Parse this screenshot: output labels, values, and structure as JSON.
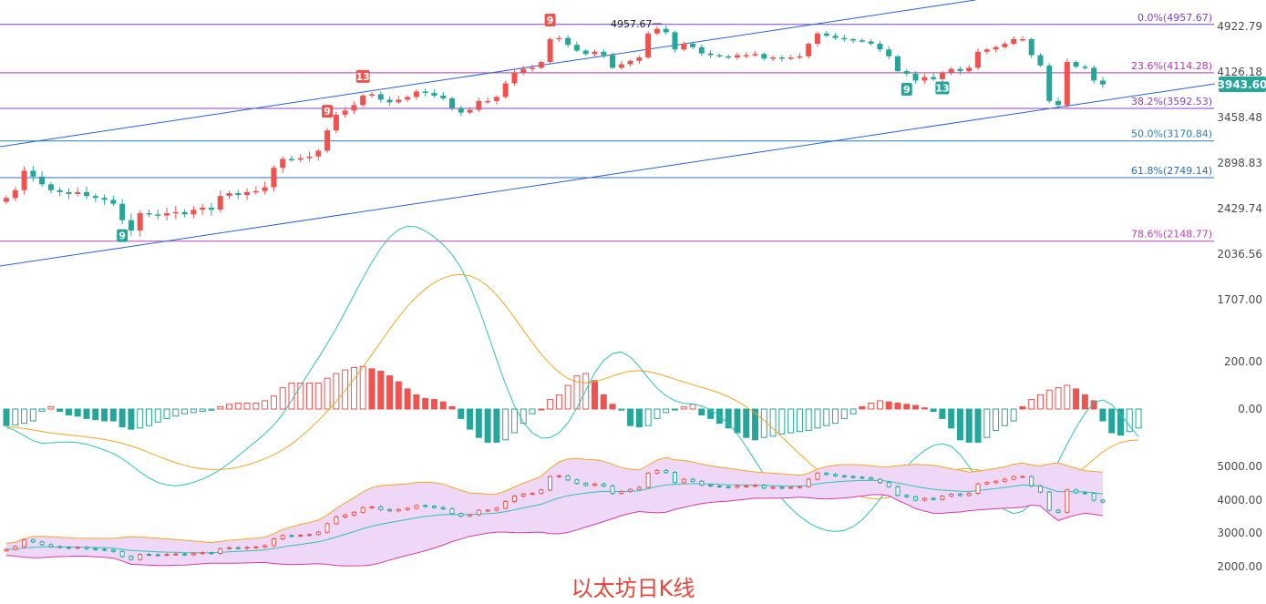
{
  "chart_data": [
    {
      "type": "candlestick",
      "name": "price",
      "y_axis_ticks": [
        "4922.79",
        "4126.18",
        "3458.48",
        "2898.83",
        "2429.74",
        "2036.56",
        "1707.00"
      ],
      "y_axis_values": [
        4922.79,
        4126.18,
        3458.48,
        2898.83,
        2429.74,
        2036.56,
        1707.0
      ],
      "current_price": "3943.60",
      "current_price_value": 3943.6,
      "high_annotation": "4957.67",
      "high_value": 4957.67,
      "fibonacci": [
        {
          "label": "0.0%(4957.67)",
          "value": 4957.67,
          "color": "#7b3fe4"
        },
        {
          "label": "23.6%(4114.28)",
          "value": 4114.28,
          "color": "#b03aa8"
        },
        {
          "label": "38.2%(3592.53)",
          "value": 3592.53,
          "color": "#8e3fc8"
        },
        {
          "label": "50.0%(3170.84)",
          "value": 3170.84,
          "color": "#2a7db0"
        },
        {
          "label": "61.8%(2749.14)",
          "value": 2749.14,
          "color": "#2b6fc0"
        },
        {
          "label": "78.6%(2148.77)",
          "value": 2148.77,
          "color": "#c040b0"
        }
      ],
      "markers": [
        {
          "text": "9",
          "bar": 13,
          "position": "below",
          "color": "#26a69a"
        },
        {
          "text": "9",
          "bar": 36,
          "position": "above",
          "color": "#ef5350"
        },
        {
          "text": "13",
          "bar": 40,
          "position": "above",
          "color": "#ef5350"
        },
        {
          "text": "9",
          "bar": 61,
          "position": "above",
          "color": "#ef5350"
        },
        {
          "text": "9",
          "bar": 101,
          "position": "below",
          "color": "#26a69a"
        },
        {
          "text": "13",
          "bar": 105,
          "position": "below",
          "color": "#26a69a"
        }
      ],
      "closes": [
        2540,
        2620,
        2820,
        2760,
        2680,
        2620,
        2600,
        2580,
        2600,
        2560,
        2540,
        2520,
        2480,
        2330,
        2240,
        2390,
        2380,
        2370,
        2390,
        2400,
        2380,
        2420,
        2440,
        2420,
        2560,
        2590,
        2570,
        2600,
        2610,
        2650,
        2850,
        2950,
        2940,
        2960,
        2980,
        3050,
        3300,
        3500,
        3560,
        3640,
        3780,
        3800,
        3720,
        3680,
        3720,
        3760,
        3840,
        3820,
        3780,
        3740,
        3600,
        3530,
        3570,
        3700,
        3700,
        3760,
        3960,
        4120,
        4180,
        4200,
        4300,
        4700,
        4720,
        4600,
        4500,
        4440,
        4480,
        4420,
        4200,
        4260,
        4320,
        4380,
        4800,
        4880,
        4820,
        4520,
        4620,
        4560,
        4450,
        4420,
        4400,
        4380,
        4420,
        4420,
        4440,
        4360,
        4380,
        4360,
        4380,
        4400,
        4620,
        4800,
        4760,
        4720,
        4700,
        4680,
        4660,
        4620,
        4520,
        4400,
        4140,
        4100,
        4000,
        4050,
        4020,
        4120,
        4180,
        4140,
        4200,
        4480,
        4520,
        4560,
        4620,
        4700,
        4700,
        4420,
        4240,
        3700,
        3640,
        4300,
        4220,
        4200,
        4000,
        3943
      ]
    },
    {
      "type": "macd",
      "name": "macd",
      "y_axis_ticks": [
        "200.00",
        "0.00"
      ],
      "y_axis_values": [
        200,
        0
      ],
      "histogram": [
        -70,
        -68,
        -60,
        -50,
        -10,
        10,
        -10,
        -25,
        -30,
        -40,
        -45,
        -50,
        -50,
        -75,
        -85,
        -80,
        -70,
        -55,
        -40,
        -30,
        -20,
        -15,
        -10,
        -5,
        10,
        20,
        25,
        25,
        25,
        35,
        55,
        90,
        110,
        110,
        110,
        110,
        130,
        150,
        165,
        175,
        180,
        170,
        160,
        140,
        115,
        85,
        60,
        45,
        40,
        30,
        10,
        -40,
        -85,
        -120,
        -140,
        -140,
        -130,
        -100,
        -60,
        -20,
        0,
        40,
        60,
        100,
        140,
        150,
        120,
        60,
        20,
        -5,
        -70,
        -75,
        -70,
        -40,
        -15,
        -2,
        10,
        20,
        -25,
        -40,
        -60,
        -80,
        -100,
        -120,
        -130,
        -120,
        -115,
        -105,
        -100,
        -95,
        -90,
        -80,
        -70,
        -60,
        -40,
        -20,
        10,
        25,
        35,
        30,
        25,
        20,
        15,
        5,
        -10,
        -40,
        -80,
        -130,
        -140,
        -140,
        -120,
        -90,
        -70,
        -50,
        10,
        40,
        60,
        80,
        90,
        100,
        85,
        60,
        35,
        -50,
        -100,
        -110,
        -95,
        -80
      ]
    },
    {
      "type": "candlestick",
      "name": "bollinger",
      "y_axis_ticks": [
        "5000.00",
        "4000.00",
        "3000.00",
        "2000.00"
      ],
      "y_axis_values": [
        5000,
        4000,
        3000,
        2000
      ]
    }
  ],
  "caption": "以太坊日K线",
  "colors": {
    "up": "#26a69a",
    "down": "#ef5350",
    "trendline": "#2962d4",
    "macd_dif": "#2ec4b6",
    "macd_dea": "#f5a623",
    "boll_upper": "#f5a623",
    "boll_mid": "#2ec4b6",
    "boll_lower": "#d63aa8",
    "boll_fill": "#efd8f7",
    "price_badge": "#26a69a"
  }
}
